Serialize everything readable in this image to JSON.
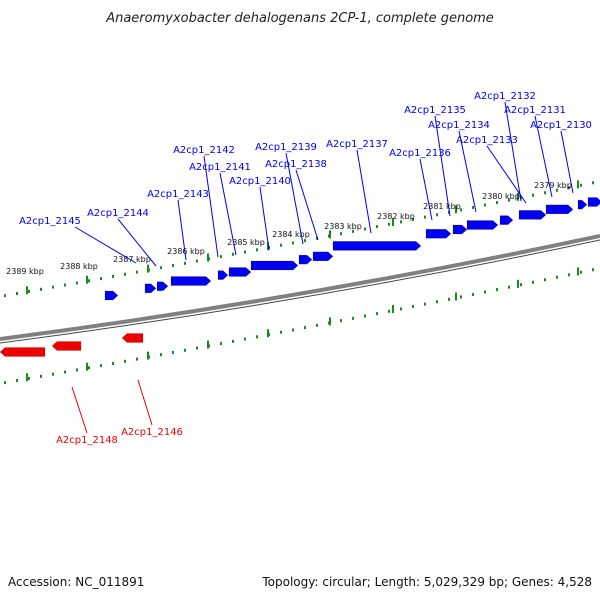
{
  "title": "Anaeromyxobacter dehalogenans 2CP-1, complete genome",
  "footer": {
    "accession": "Accession: NC_011891",
    "summary": "Topology: circular; Length: 5,029,329 bp; Genes: 4,528"
  },
  "colors": {
    "forward": "#0000ee",
    "reverse": "#ee0000",
    "tick": "#1a8a1a",
    "backbone": "#808080"
  },
  "tick_labels": [
    "2389 kbp",
    "2388 kbp",
    "2387 kbp",
    "2386 kbp",
    "2385 kbp",
    "2384 kbp",
    "2383 kbp",
    "2382 kbp",
    "2381 kbp",
    "2380 kbp",
    "2379 kbp"
  ],
  "forward_genes": [
    "A2cp1_2145",
    "A2cp1_2144",
    "A2cp1_2143",
    "A2cp1_2142",
    "A2cp1_2141",
    "A2cp1_2140",
    "A2cp1_2139",
    "A2cp1_2138",
    "A2cp1_2137",
    "A2cp1_2136",
    "A2cp1_2135",
    "A2cp1_2134",
    "A2cp1_2133",
    "A2cp1_2132",
    "A2cp1_2131",
    "A2cp1_2130"
  ],
  "reverse_genes": [
    "A2cp1_2148",
    "A2cp1_2146"
  ]
}
